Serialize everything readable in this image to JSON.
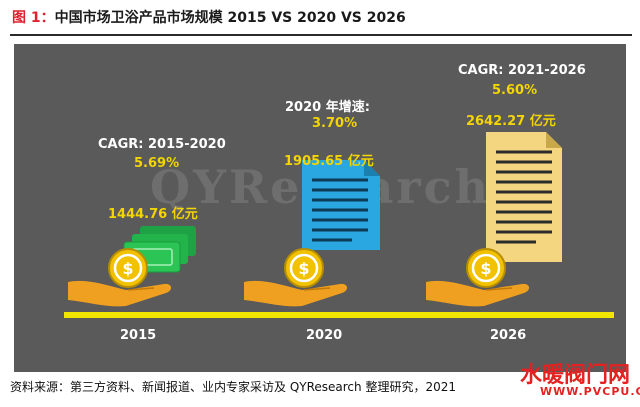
{
  "header": {
    "fig_label": "图 1：",
    "title": "中国市场卫浴产品市场规模 2015 VS 2020 VS 2026"
  },
  "watermark": "QYResearch",
  "colors": {
    "panel": "#5a5a5a",
    "accent_yellow": "#f3d500",
    "bill_green": "#22b34a",
    "doc_blue": "#2aa7e0",
    "doc_gold": "#f5d680",
    "hand": "#f0a020",
    "coin": "#f2c200"
  },
  "chart_data": {
    "type": "bar",
    "title": "中国市场卫浴产品市场规模 2015 VS 2020 VS 2026",
    "categories": [
      "2015",
      "2020",
      "2026"
    ],
    "values": [
      1444.76,
      1905.65,
      2642.27
    ],
    "value_labels": [
      "1444.76 亿元",
      "1905.65  亿元",
      "2642.27  亿元"
    ],
    "unit": "亿元",
    "growth_labels": [
      {
        "label": "CAGR: 2015-2020",
        "value": "5.69%"
      },
      {
        "label": "2020 年增速:",
        "value": "3.70%"
      },
      {
        "label": "CAGR: 2021-2026",
        "value": "5.60%"
      }
    ]
  },
  "icons": [
    "money-bills-icon",
    "document-icon",
    "document-icon",
    "coin-in-hand-icon"
  ],
  "footer": {
    "source": "资料来源：第三方资料、新闻报道、业内专家采访及 QYResearch 整理研究，2021"
  },
  "logo": {
    "name": "水暖阀门网",
    "url": "WWW.PVCPU.COM"
  }
}
